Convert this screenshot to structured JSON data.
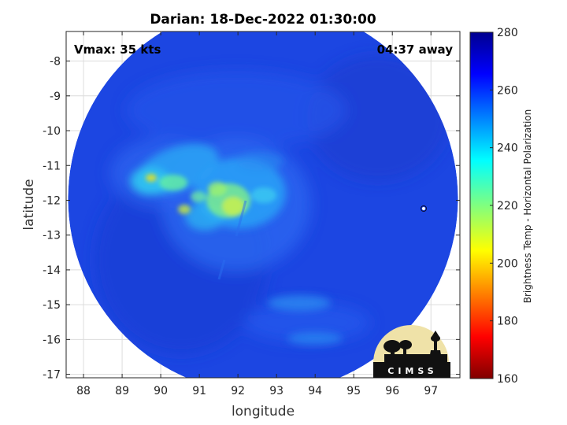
{
  "chart_data": {
    "type": "heatmap",
    "title": "Darian: 18-Dec-2022 01:30:00",
    "xlabel": "longitude",
    "ylabel": "latitude",
    "xlim": [
      87.55,
      97.75
    ],
    "ylim": [
      -17.1,
      -7.15
    ],
    "xticks": [
      88,
      89,
      90,
      91,
      92,
      93,
      94,
      95,
      96,
      97
    ],
    "yticks": [
      -8,
      -9,
      -10,
      -11,
      -12,
      -13,
      -14,
      -15,
      -16,
      -17
    ],
    "grid": true,
    "annotations": {
      "left": "Vmax: 35 kts",
      "right": "04:37 away"
    },
    "swath": {
      "center_lon": 92.65,
      "center_lat": -11.95,
      "radius_lon": 5.05,
      "radius_lat": 5.6
    },
    "colorbar": {
      "label": "Brightness Temp - Horizontal Polarization",
      "min": 160,
      "max": 280,
      "ticks": [
        160,
        180,
        200,
        220,
        240,
        260,
        280
      ],
      "colormap": "jet"
    },
    "features": [
      {
        "name": "convective core",
        "lon": 91.85,
        "lat": -12.0,
        "approx_tb": 212
      },
      {
        "name": "outer convection band",
        "lon": 90.0,
        "lat": -11.2,
        "approx_tb": 225
      },
      {
        "name": "southern rainband",
        "lon": 93.6,
        "lat": -14.85,
        "approx_tb": 238
      }
    ],
    "logo_text": "CIMSS"
  }
}
